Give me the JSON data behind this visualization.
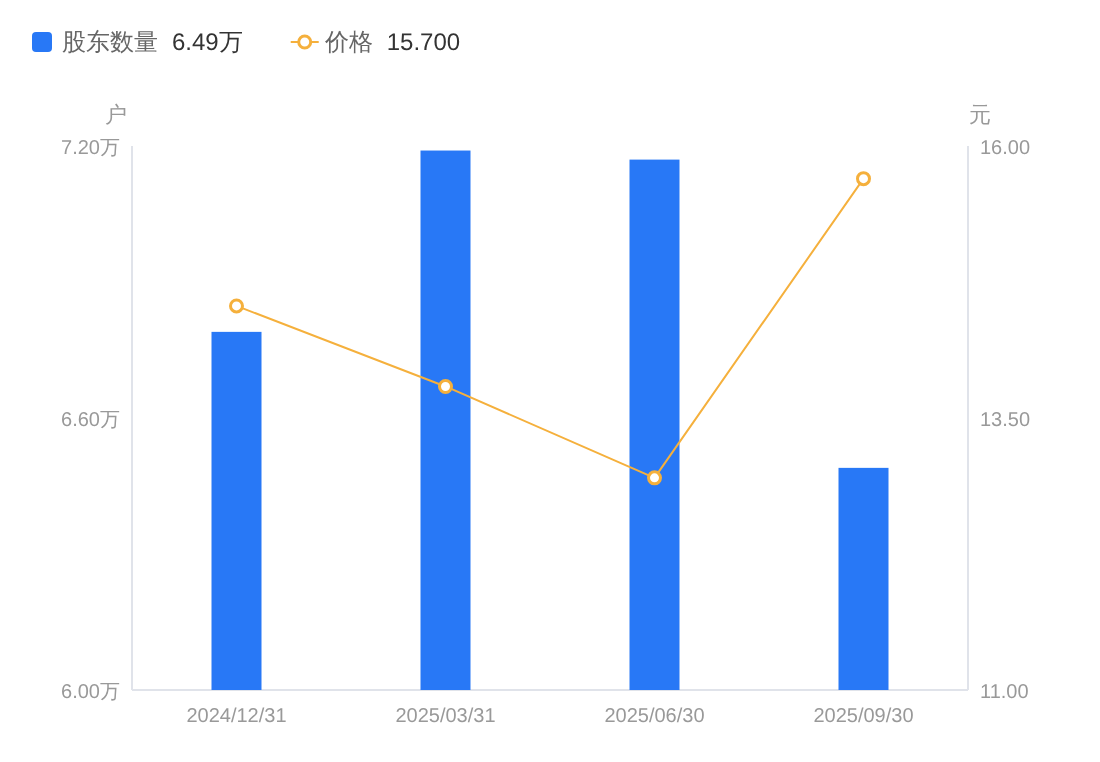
{
  "chart_data": {
    "type": "bar",
    "categories": [
      "2024/12/31",
      "2025/03/31",
      "2025/06/30",
      "2025/09/30"
    ],
    "series": [
      {
        "name": "股东数量",
        "color": "#2878f6",
        "values": [
          6.79,
          7.19,
          7.17,
          6.49
        ]
      },
      {
        "name": "价格",
        "type": "line",
        "axis": "y2",
        "color": "#f5b03c",
        "marker": "circle",
        "values": [
          14.53,
          13.79,
          12.95,
          15.7
        ]
      }
    ],
    "ylabel": "户",
    "y2label": "元",
    "ylim": [
      6.0,
      7.2
    ],
    "yticks": [
      {
        "value": 6.0,
        "label": "6.00万"
      },
      {
        "value": 6.6,
        "label": "6.60万"
      },
      {
        "value": 7.2,
        "label": "7.20万"
      }
    ],
    "y2lim": [
      11,
      16
    ],
    "y2ticks": [
      {
        "value": 11,
        "label": "11.00"
      },
      {
        "value": 13.5,
        "label": "13.50"
      },
      {
        "value": 16,
        "label": "16.00"
      }
    ],
    "annotations": [
      "6.49万",
      "15.700"
    ],
    "legend": "top left",
    "grid": false
  }
}
